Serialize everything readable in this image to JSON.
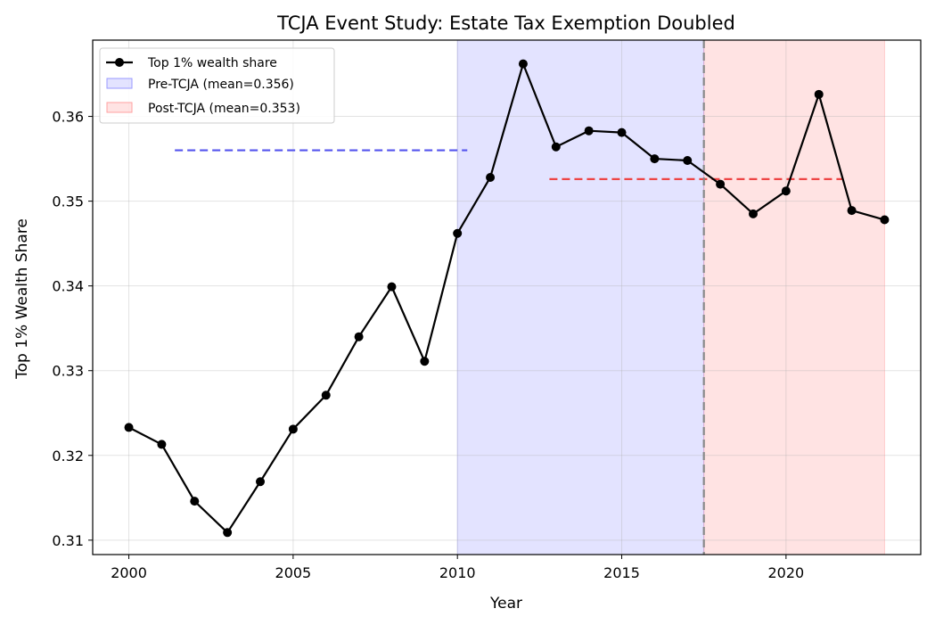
{
  "chart_data": {
    "type": "line",
    "title": "TCJA Event Study: Estate Tax Exemption Doubled",
    "xlabel": "Year",
    "ylabel": "Top 1% Wealth Share",
    "xlim": [
      1998.9,
      2024.1
    ],
    "ylim": [
      0.3083,
      0.369
    ],
    "xticks": [
      2000,
      2005,
      2010,
      2015,
      2020
    ],
    "yticks": [
      0.31,
      0.32,
      0.33,
      0.34,
      0.35,
      0.36
    ],
    "ytick_labels": [
      "0.31",
      "0.32",
      "0.33",
      "0.34",
      "0.35",
      "0.36"
    ],
    "grid": true,
    "legend_position": "top-left",
    "series": [
      {
        "name": "Top 1% wealth share",
        "color": "#000000",
        "x": [
          2000,
          2001,
          2002,
          2003,
          2004,
          2005,
          2006,
          2007,
          2008,
          2009,
          2010,
          2011,
          2012,
          2013,
          2014,
          2015,
          2016,
          2017,
          2018,
          2019,
          2020,
          2021,
          2022,
          2023
        ],
        "y": [
          0.3233,
          0.3213,
          0.3146,
          0.3109,
          0.3169,
          0.3231,
          0.3271,
          0.334,
          0.3399,
          0.3311,
          0.3462,
          0.3528,
          0.3662,
          0.3564,
          0.3583,
          0.3581,
          0.355,
          0.3548,
          0.352,
          0.3485,
          0.3512,
          0.3626,
          0.3489,
          0.3478
        ]
      }
    ],
    "shaded_regions": [
      {
        "label": "Pre-TCJA (mean=0.356)",
        "x_start": 2010,
        "x_end": 2017.5,
        "color": "#0000ff",
        "opacity": 0.11
      },
      {
        "label": "Post-TCJA (mean=0.353)",
        "x_start": 2017.5,
        "x_end": 2023,
        "color": "#ff0000",
        "opacity": 0.11
      }
    ],
    "mean_lines": [
      {
        "x_start": 2001.4,
        "x_end": 2010.3,
        "y": 0.356,
        "color": "#5555ee"
      },
      {
        "x_start": 2012.8,
        "x_end": 2021.7,
        "y": 0.3526,
        "color": "#ee4444"
      }
    ],
    "event_line": {
      "x": 2017.5,
      "color": "#888888"
    }
  }
}
